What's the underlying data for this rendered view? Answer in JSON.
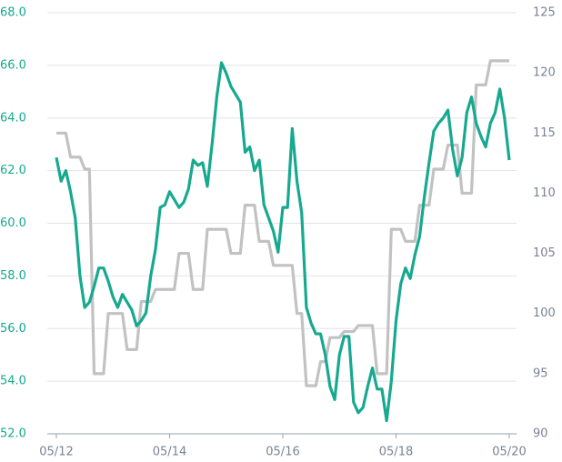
{
  "chart_data": {
    "type": "line",
    "x": [
      "05/12",
      "06/12",
      "07/12",
      "08/12",
      "09/12",
      "10/12",
      "11/12",
      "12/12",
      "01/13",
      "02/13",
      "03/13",
      "04/13",
      "05/13",
      "06/13",
      "07/13",
      "08/13",
      "09/13",
      "10/13",
      "11/13",
      "12/13",
      "01/14",
      "02/14",
      "03/14",
      "04/14",
      "05/14",
      "06/14",
      "07/14",
      "08/14",
      "09/14",
      "10/14",
      "11/14",
      "12/14",
      "01/15",
      "02/15",
      "03/15",
      "04/15",
      "05/15",
      "06/15",
      "07/15",
      "08/15",
      "09/15",
      "10/15",
      "11/15",
      "12/15",
      "01/16",
      "02/16",
      "03/16",
      "04/16",
      "05/16",
      "06/16",
      "07/16",
      "08/16",
      "09/16",
      "10/16",
      "11/16",
      "12/16",
      "01/17",
      "02/17",
      "03/17",
      "04/17",
      "05/17",
      "06/17",
      "07/17",
      "08/17",
      "09/17",
      "10/17",
      "11/17",
      "12/17",
      "01/18",
      "02/18",
      "03/18",
      "04/18",
      "05/18",
      "06/18",
      "07/18",
      "08/18",
      "09/18",
      "10/18",
      "11/18",
      "12/18",
      "01/19",
      "02/19",
      "03/19",
      "04/19",
      "05/19",
      "06/19",
      "07/19",
      "08/19",
      "09/19",
      "10/19",
      "11/19",
      "12/19",
      "01/20",
      "02/20",
      "03/20",
      "04/20",
      "05/20"
    ],
    "xticks": [
      "05/12",
      "05/14",
      "05/16",
      "05/18",
      "05/20"
    ],
    "series": [
      {
        "color": "#17a990",
        "values": [
          62.5,
          61.6,
          62.0,
          61.2,
          60.2,
          58.0,
          56.8,
          57.0,
          57.6,
          58.3,
          58.3,
          57.8,
          57.2,
          56.8,
          57.3,
          57.0,
          56.7,
          56.1,
          56.3,
          56.6,
          58.0,
          59.0,
          60.6,
          60.7,
          61.2,
          60.9,
          60.6,
          60.8,
          61.3,
          62.4,
          62.2,
          62.3,
          61.4,
          63.0,
          64.8,
          66.1,
          65.7,
          65.2,
          64.9,
          64.6,
          62.7,
          62.9,
          62.0,
          62.4,
          60.7,
          60.2,
          59.7,
          58.9,
          60.6,
          60.6,
          63.6,
          61.6,
          60.4,
          56.8,
          56.2,
          55.8,
          55.8,
          55.0,
          53.8,
          53.3,
          55.0,
          55.7,
          55.7,
          53.2,
          52.8,
          53.0,
          53.8,
          54.5,
          53.7,
          53.7,
          52.5,
          54.0,
          56.3,
          57.7,
          58.3,
          57.9,
          58.8,
          59.5,
          61.0,
          62.3,
          63.5,
          63.8,
          64.0,
          64.3,
          62.8,
          61.8,
          62.5,
          64.2,
          64.8,
          63.8,
          63.3,
          62.9,
          63.8,
          64.2,
          65.1,
          64.0,
          62.4
        ]
      },
      {
        "color": "#c2c2c2",
        "axis": "y2",
        "values": [
          115,
          115,
          115,
          113,
          113,
          113,
          112,
          112,
          95,
          95,
          95,
          100,
          100,
          100,
          100,
          97,
          97,
          97,
          101,
          101,
          101,
          102,
          102,
          102,
          102,
          102,
          105,
          105,
          105,
          102,
          102,
          102,
          107,
          107,
          107,
          107,
          107,
          105,
          105,
          105,
          109,
          109,
          109,
          106,
          106,
          106,
          104,
          104,
          104,
          104,
          104,
          100,
          100,
          94,
          94,
          94,
          96,
          96,
          98,
          98,
          98,
          98.5,
          98.5,
          98.5,
          99,
          99,
          99,
          99,
          95,
          95,
          95,
          107,
          107,
          107,
          106,
          106,
          106,
          109,
          109,
          109,
          112,
          112,
          112,
          114,
          114,
          114,
          110,
          110,
          110,
          119,
          119,
          119,
          121,
          121,
          121,
          121,
          121
        ]
      }
    ],
    "ylim": [
      52,
      68
    ],
    "yticks": [
      {
        "value": 52,
        "label": "52.0"
      },
      {
        "value": 54,
        "label": "54.0"
      },
      {
        "value": 56,
        "label": "56.0"
      },
      {
        "value": 58,
        "label": "58.0"
      },
      {
        "value": 60,
        "label": "60.0"
      },
      {
        "value": 62,
        "label": "62.0"
      },
      {
        "value": 64,
        "label": "64.0"
      },
      {
        "value": 66,
        "label": "66.0"
      },
      {
        "value": 68,
        "label": "68.0"
      }
    ],
    "y2lim": [
      90,
      125
    ],
    "y2ticks": [
      90,
      95,
      100,
      105,
      110,
      115,
      120,
      125
    ],
    "grid": true
  }
}
